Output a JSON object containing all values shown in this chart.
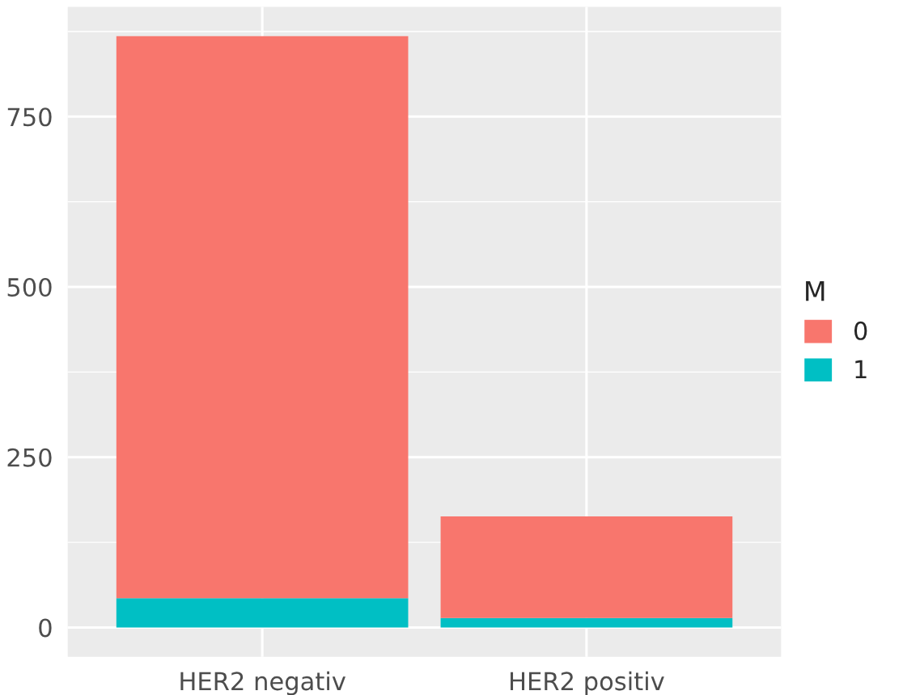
{
  "chart_data": {
    "type": "bar",
    "stacked": true,
    "categories": [
      "HER2 negativ",
      "HER2 positiv"
    ],
    "series": [
      {
        "name": "1",
        "color": "#00bfc4",
        "values": [
          43,
          14
        ]
      },
      {
        "name": "0",
        "color": "#f8766d",
        "values": [
          825,
          149
        ]
      }
    ],
    "legend_title": "M",
    "legend": "right",
    "ylim": [
      -43,
      911
    ],
    "yticks": [
      0,
      250,
      500,
      750
    ],
    "grid": true
  }
}
